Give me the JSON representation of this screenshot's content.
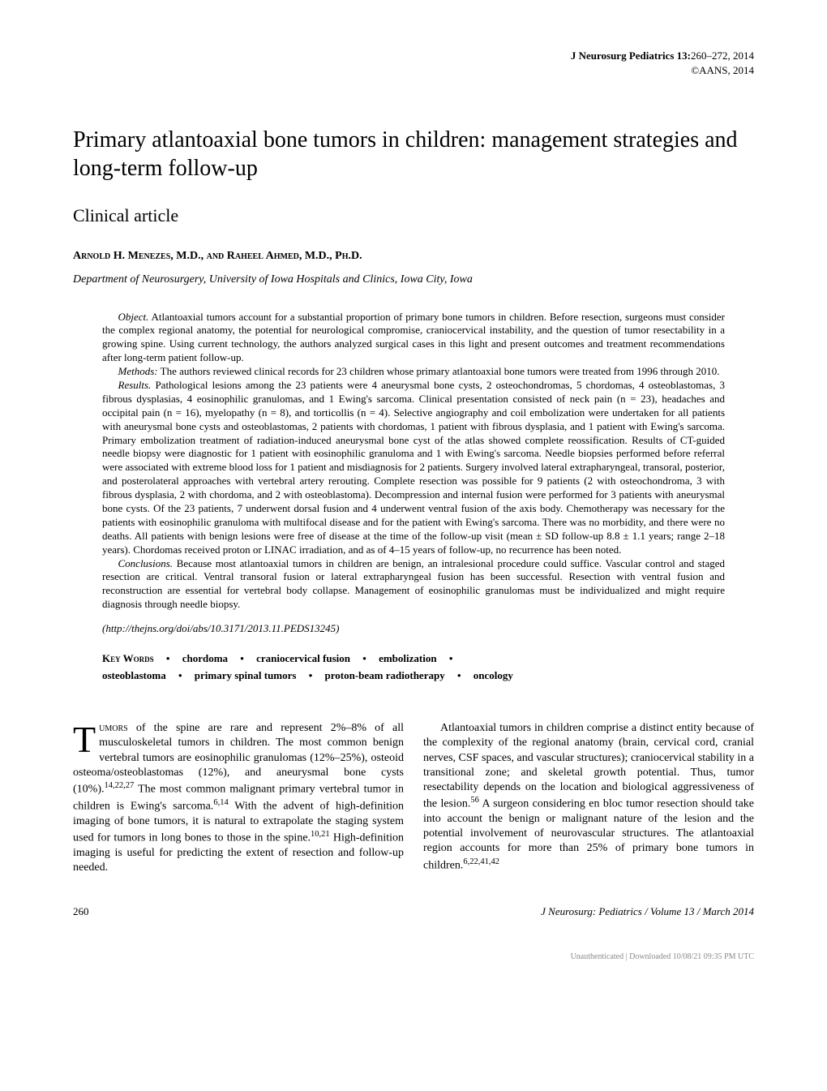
{
  "header": {
    "journal": "J Neurosurg Pediatrics 13:",
    "pages": "260–272, 2014",
    "copyright": "©AANS, 2014"
  },
  "title": "Primary atlantoaxial bone tumors in children: management strategies and long-term follow-up",
  "article_type": "Clinical article",
  "authors": "Arnold H. Menezes, M.D., and Raheel Ahmed, M.D., Ph.D.",
  "affiliation": "Department of Neurosurgery, University of Iowa Hospitals and Clinics, Iowa City, Iowa",
  "abstract": {
    "object_label": "Object.",
    "object": " Atlantoaxial tumors account for a substantial proportion of primary bone tumors in children. Before resection, surgeons must consider the complex regional anatomy, the potential for neurological compromise, craniocervical instability, and the question of tumor resectability in a growing spine. Using current technology, the authors analyzed surgical cases in this light and present outcomes and treatment recommendations after long-term patient follow-up.",
    "methods_label": "Methods:",
    "methods": " The authors reviewed clinical records for 23 children whose primary atlantoaxial bone tumors were treated from 1996 through 2010.",
    "results_label": "Results.",
    "results": " Pathological lesions among the 23 patients were 4 aneurysmal bone cysts, 2 osteochondromas, 5 chordomas, 4 osteoblastomas, 3 fibrous dysplasias, 4 eosinophilic granulomas, and 1 Ewing's sarcoma. Clinical presentation consisted of neck pain (n = 23), headaches and occipital pain (n = 16), myelopathy (n = 8), and torticollis (n = 4). Selective angiography and coil embolization were undertaken for all patients with aneurysmal bone cysts and osteoblastomas, 2 patients with chordomas, 1 patient with fibrous dysplasia, and 1 patient with Ewing's sarcoma. Primary embolization treatment of radiation-induced aneurysmal bone cyst of the atlas showed complete reossification. Results of CT-guided needle biopsy were diagnostic for 1 patient with eosinophilic granuloma and 1 with Ewing's sarcoma. Needle biopsies performed before referral were associated with extreme blood loss for 1 patient and misdiagnosis for 2 patients. Surgery involved lateral extrapharyngeal, transoral, posterior, and posterolateral approaches with vertebral artery rerouting. Complete resection was possible for 9 patients (2 with osteochondroma, 3 with fibrous dysplasia, 2 with chordoma, and 2 with osteoblastoma). Decompression and internal fusion were performed for 3 patients with aneurysmal bone cysts. Of the 23 patients, 7 underwent dorsal fusion and 4 underwent ventral fusion of the axis body. Chemotherapy was necessary for the patients with eosinophilic granuloma with multifocal disease and for the patient with Ewing's sarcoma. There was no morbidity, and there were no deaths. All patients with benign lesions were free of disease at the time of the follow-up visit (mean ± SD follow-up 8.8 ± 1.1 years; range 2–18 years). Chordomas received proton or LINAC irradiation, and as of 4–15 years of follow-up, no recurrence has been noted.",
    "conclusions_label": "Conclusions.",
    "conclusions": " Because most atlantoaxial tumors in children are benign, an intralesional procedure could suffice. Vascular control and staged resection are critical. Ventral transoral fusion or lateral extrapharyngeal fusion has been successful. Resection with ventral fusion and reconstruction are essential for vertebral body collapse. Management of eosinophilic granulomas must be individualized and might require diagnosis through needle biopsy."
  },
  "doi": "(http://thejns.org/doi/abs/10.3171/2013.11.PEDS13245)",
  "keywords": {
    "label": "Key Words",
    "items": [
      "chordoma",
      "craniocervical fusion",
      "embolization",
      "osteoblastoma",
      "primary spinal tumors",
      "proton-beam radiotherapy",
      "oncology"
    ]
  },
  "body": {
    "p1_dropcap": "T",
    "p1_caps": "umors",
    "p1_rest": " of the spine are rare and represent 2%–8% of all musculoskeletal tumors in children. The most common benign vertebral tumors are eosinophilic granulomas (12%–25%), osteoid osteoma/osteoblastomas (12%), and aneurysmal bone cysts (10%).",
    "p1_sup1": "14,22,27",
    "p1_rest2": " The most common malignant primary vertebral tumor in children is Ewing's sarcoma.",
    "p1_sup2": "6,14",
    "p1_rest3": " With the advent of high-definition imaging of bone tumors, it is natural to extrapolate the staging system used for tumors in long bones to those in the spine.",
    "p1_sup3": "10,21",
    "p1_rest4": " High-definition imaging is useful for predicting the extent of resection and follow-up needed.",
    "p2": "Atlantoaxial tumors in children comprise a distinct entity because of the complexity of the regional anatomy (brain, cervical cord, cranial nerves, CSF spaces, and vascular structures); craniocervical stability in a transitional zone; and skeletal growth potential. Thus, tumor resectability depends on the location and biological aggressiveness of the lesion.",
    "p2_sup1": "56",
    "p2_rest": " A surgeon considering en bloc tumor resection should take into account the benign or malignant nature of the lesion and the potential involvement of neurovascular structures. The atlantoaxial region accounts for more than 25% of primary bone tumors in children.",
    "p2_sup2": "6,22,41,42"
  },
  "footer": {
    "page": "260",
    "journal": "J Neurosurg: Pediatrics / Volume 13 / March 2014"
  },
  "unauth": "Unauthenticated | Downloaded 10/08/21 09:35 PM UTC"
}
